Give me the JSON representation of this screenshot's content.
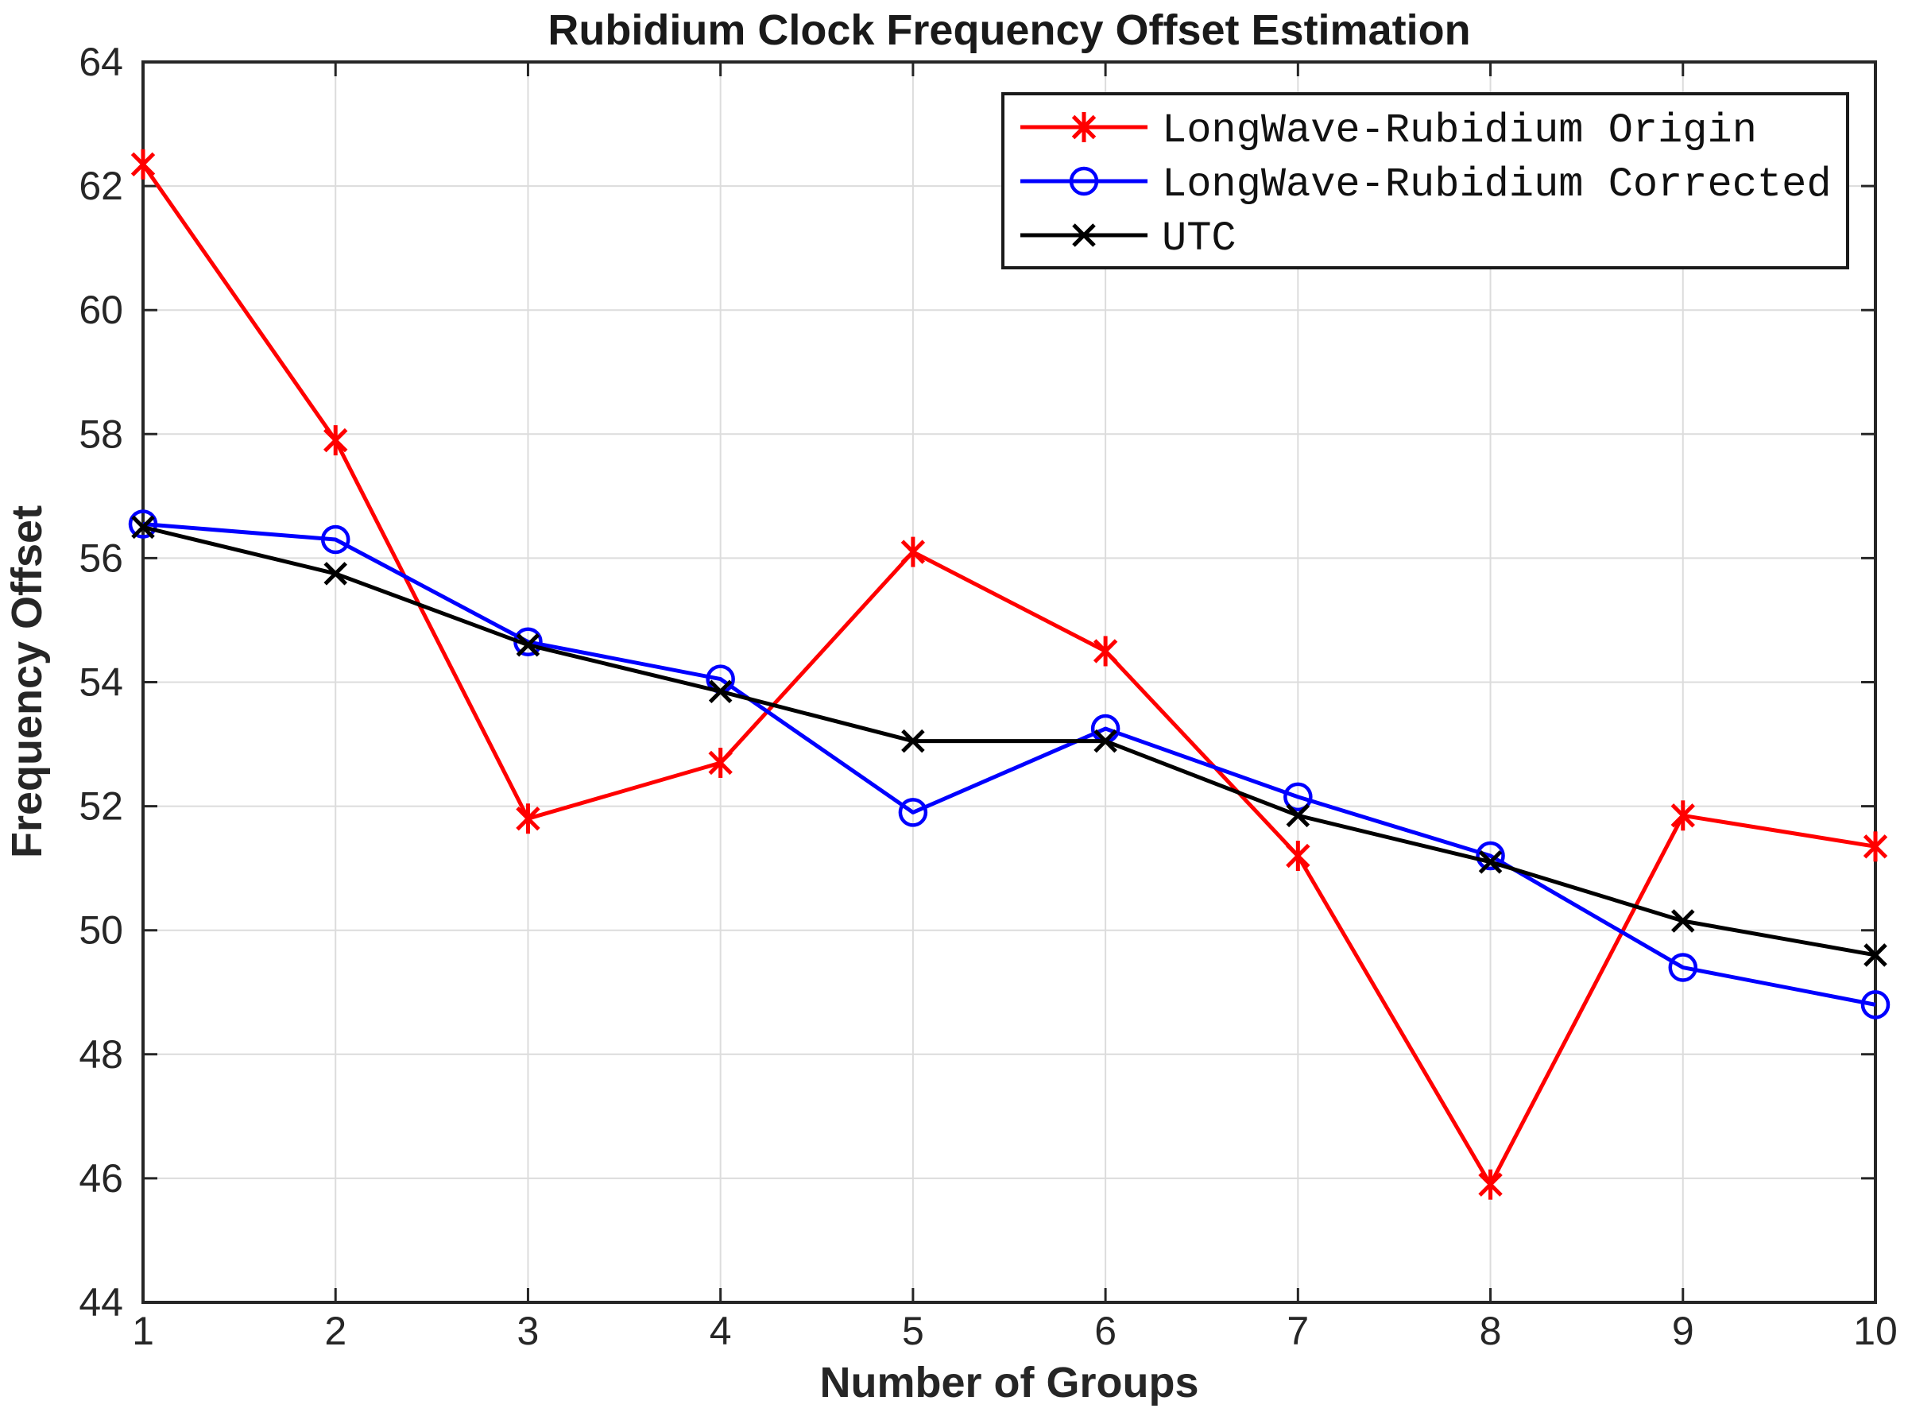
{
  "title": "Rubidium Clock Frequency Offset Estimation",
  "chart_data": {
    "type": "line",
    "title": "Rubidium Clock Frequency Offset Estimation",
    "xlabel": "Number of Groups",
    "ylabel": "Frequency Offset",
    "x": [
      1,
      2,
      3,
      4,
      5,
      6,
      7,
      8,
      9,
      10
    ],
    "xlim": [
      1,
      10
    ],
    "ylim": [
      44,
      64
    ],
    "ytick_step": 2,
    "yticks": [
      44,
      46,
      48,
      50,
      52,
      54,
      56,
      58,
      60,
      62,
      64
    ],
    "grid": true,
    "grid_color": "#dcdcdc",
    "axis_color": "#262626",
    "background_color": "#ffffff",
    "legend_position": "top-right",
    "series": [
      {
        "name": "LongWave-Rubidium Origin",
        "color": "#ff0000",
        "marker": "asterisk",
        "values": [
          62.35,
          57.9,
          51.8,
          52.7,
          56.1,
          54.5,
          51.2,
          45.9,
          51.85,
          51.35
        ]
      },
      {
        "name": "LongWave-Rubidium Corrected",
        "color": "#0000ff",
        "marker": "circle",
        "values": [
          56.55,
          56.3,
          54.65,
          54.05,
          51.9,
          53.25,
          52.15,
          51.2,
          49.4,
          48.8
        ]
      },
      {
        "name": "UTC",
        "color": "#000000",
        "marker": "x",
        "values": [
          56.5,
          55.75,
          54.6,
          53.85,
          53.05,
          53.05,
          51.85,
          51.1,
          50.15,
          49.6
        ]
      }
    ]
  }
}
